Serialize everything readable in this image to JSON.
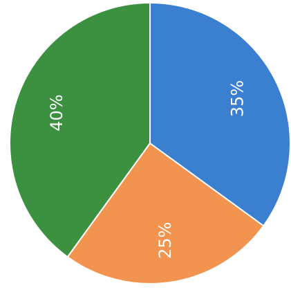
{
  "chart_data": {
    "type": "pie",
    "start_angle_deg": 0,
    "direction": "clockwise",
    "slices": [
      {
        "label": "35%",
        "value": 35,
        "color": "#3a7fd0"
      },
      {
        "label": "25%",
        "value": 25,
        "color": "#f2944f"
      },
      {
        "label": "40%",
        "value": 40,
        "color": "#3b9140"
      }
    ],
    "legend": "none",
    "title": ""
  }
}
